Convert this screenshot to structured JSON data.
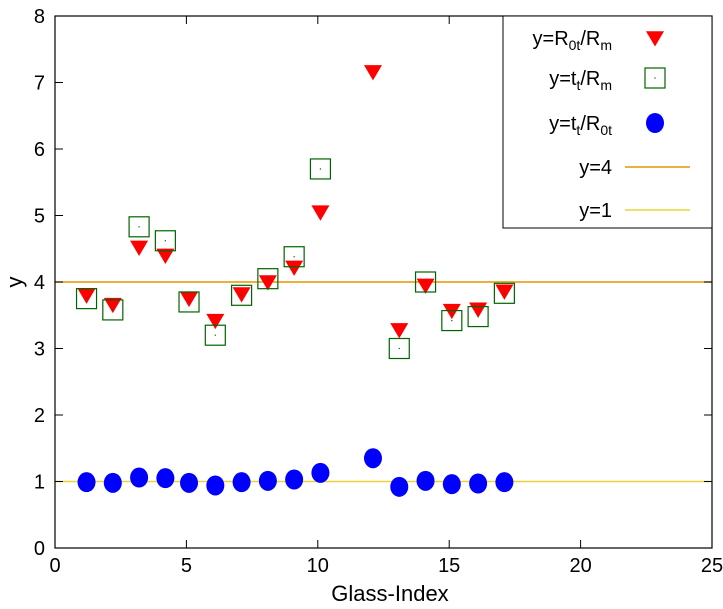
{
  "chart_data": {
    "type": "scatter",
    "title": "",
    "xlabel": "Glass-Index",
    "ylabel": "y",
    "xlim": [
      0,
      25
    ],
    "ylim": [
      0,
      8
    ],
    "xticks": [
      0,
      5,
      10,
      15,
      20,
      25
    ],
    "yticks": [
      0,
      1,
      2,
      3,
      4,
      5,
      6,
      7,
      8
    ],
    "grid": false,
    "legend_position": "top-right",
    "series": [
      {
        "name": "y=R0t/Rm",
        "legend_parts": [
          [
            "y=R",
            ""
          ],
          [
            "0t",
            "sub"
          ],
          [
            "/R",
            ""
          ],
          [
            "m",
            "sub"
          ]
        ],
        "marker": "triangle-down",
        "color": "#ff0000",
        "x": [
          1.2,
          2.2,
          3.2,
          4.2,
          5.1,
          6.1,
          7.1,
          8.1,
          9.1,
          10.1,
          12.1,
          13.1,
          14.1,
          15.1,
          16.1,
          17.1
        ],
        "y": [
          3.8,
          3.66,
          4.52,
          4.4,
          3.75,
          3.42,
          3.82,
          4.0,
          4.22,
          5.05,
          7.16,
          3.28,
          3.95,
          3.57,
          3.59,
          3.86
        ]
      },
      {
        "name": "y=tt/Rm",
        "legend_parts": [
          [
            "y=t",
            ""
          ],
          [
            "t",
            "sub"
          ],
          [
            "/R",
            ""
          ],
          [
            "m",
            "sub"
          ]
        ],
        "marker": "square-open",
        "color": "#006400",
        "x": [
          1.2,
          2.2,
          3.2,
          4.2,
          5.1,
          6.1,
          7.1,
          8.1,
          9.1,
          10.1,
          13.1,
          14.1,
          15.1,
          16.1,
          17.1
        ],
        "y": [
          3.75,
          3.58,
          4.83,
          4.62,
          3.7,
          3.2,
          3.8,
          4.05,
          4.38,
          5.7,
          3.0,
          4.0,
          3.42,
          3.48,
          3.83
        ]
      },
      {
        "name": "y=tt/R0t",
        "legend_parts": [
          [
            "y=t",
            ""
          ],
          [
            "t",
            "sub"
          ],
          [
            "/R",
            ""
          ],
          [
            "0t",
            "sub"
          ]
        ],
        "marker": "circle-filled",
        "color": "#0000ff",
        "x": [
          1.2,
          2.2,
          3.2,
          4.2,
          5.1,
          6.1,
          7.1,
          8.1,
          9.1,
          10.1,
          12.1,
          13.1,
          14.1,
          15.1,
          16.1,
          17.1
        ],
        "y": [
          0.99,
          0.98,
          1.06,
          1.05,
          0.98,
          0.94,
          0.99,
          1.01,
          1.03,
          1.13,
          1.35,
          0.92,
          1.01,
          0.96,
          0.97,
          0.99
        ]
      }
    ],
    "hlines": [
      {
        "name": "y=4",
        "y": 4,
        "color": "#e69500"
      },
      {
        "name": "y=1",
        "y": 1,
        "color": "#e8d43a"
      }
    ]
  }
}
